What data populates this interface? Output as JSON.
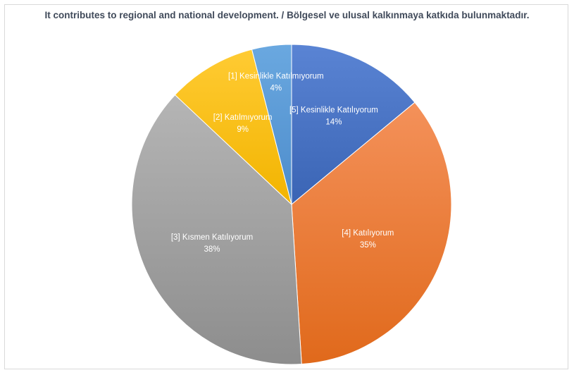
{
  "chart_data": {
    "type": "pie",
    "title": "It contributes to regional and national development. / Bölgesel ve ulusal kalkınmaya katkıda bulunmaktadır.",
    "slices": [
      {
        "name": "[5] Kesinlikle Katılıyorum",
        "value": 14,
        "label": "14%",
        "color": "#4472c4"
      },
      {
        "name": "[4] Katılıyorum",
        "value": 35,
        "label": "35%",
        "color": "#ed7d31"
      },
      {
        "name": "[3] Kısmen Katılıyorum",
        "value": 38,
        "label": "38%",
        "color": "#a5a5a5"
      },
      {
        "name": "[2] Katılmıyorum",
        "value": 9,
        "label": "9%",
        "color": "#ffc000"
      },
      {
        "name": "[1] Kesinlikle Katılmıyorum",
        "value": 4,
        "label": "4%",
        "color": "#5b9bd5"
      }
    ],
    "legend": "none",
    "start_angle": "top",
    "direction": "clockwise"
  }
}
